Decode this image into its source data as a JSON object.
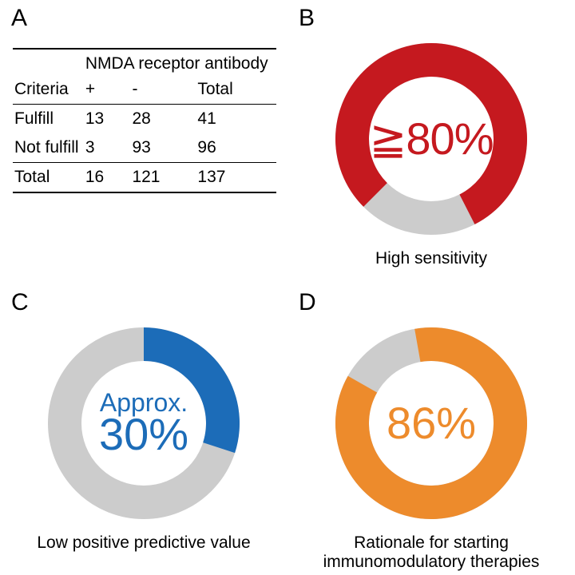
{
  "panels": {
    "A": {
      "label": "A"
    },
    "B": {
      "label": "B"
    },
    "C": {
      "label": "C"
    },
    "D": {
      "label": "D"
    }
  },
  "table": {
    "group_header": "NMDA receptor antibody",
    "col_criteria": "Criteria",
    "col_plus": "+",
    "col_minus": "-",
    "col_total": "Total",
    "rows": [
      {
        "criteria": "Fulfill",
        "plus": "13",
        "minus": "28",
        "total": "41"
      },
      {
        "criteria": "Not fulfill",
        "plus": "3",
        "minus": "93",
        "total": "96"
      },
      {
        "criteria": "Total",
        "plus": "16",
        "minus": "121",
        "total": "137"
      }
    ]
  },
  "donutB": {
    "pct": 80,
    "start_deg": -135,
    "center_text": "≧80%",
    "caption": "High sensitivity",
    "fg_color": "#c5191f",
    "bg_color": "#cccccc",
    "text_color": "#c5191f",
    "outer_r": 120,
    "inner_r": 78
  },
  "donutC": {
    "pct": 30,
    "start_deg": 0,
    "center_small": "Approx.",
    "center_big": "30%",
    "caption": "Low positive predictive value",
    "fg_color": "#1c6cb8",
    "bg_color": "#cccccc",
    "text_color": "#1c6cb8",
    "outer_r": 120,
    "inner_r": 78
  },
  "donutD": {
    "pct": 86,
    "start_deg": -10,
    "center_text": "86%",
    "caption": "Rationale for starting\nimmunomodulatory therapies",
    "fg_color": "#ed8b2c",
    "bg_color": "#cccccc",
    "text_color": "#ed8b2c",
    "outer_r": 120,
    "inner_r": 78
  }
}
